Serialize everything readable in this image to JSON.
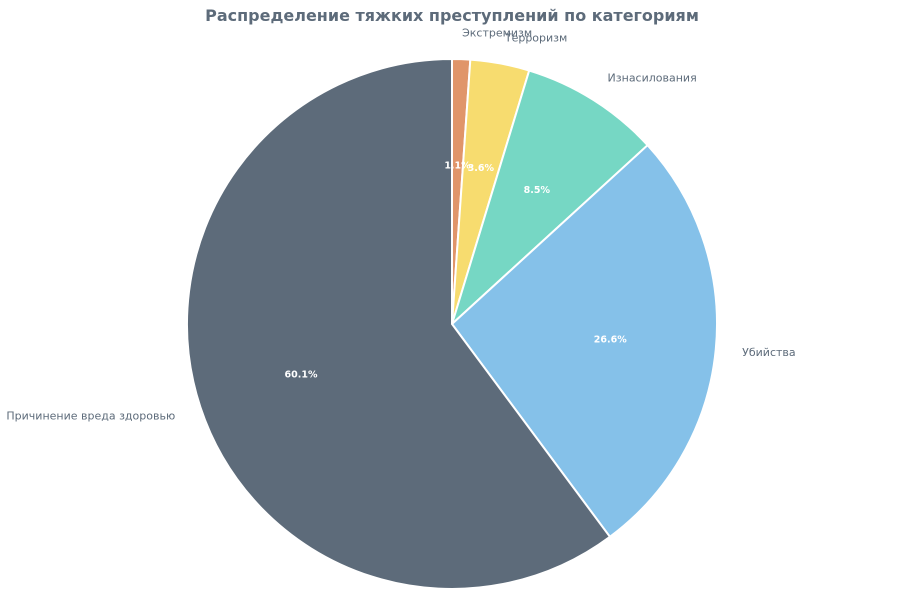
{
  "chart_data": {
    "type": "pie",
    "title": "Распределение тяжких преступлений по категориям",
    "start_angle_deg": 90,
    "direction": "clockwise",
    "slices": [
      {
        "label": "Экстремизм",
        "value": 1.1,
        "display": "1.1%",
        "color": "#e0956a"
      },
      {
        "label": "Терроризм",
        "value": 3.6,
        "display": "3.6%",
        "color": "#f7dc6f"
      },
      {
        "label": "Изнасилования",
        "value": 8.5,
        "display": "8.5%",
        "color": "#76d7c4"
      },
      {
        "label": "Убийства",
        "value": 26.6,
        "display": "26.6%",
        "color": "#85c1e9"
      },
      {
        "label": "Причинение вреда здоровью",
        "value": 60.1,
        "display": "60.1%",
        "color": "#5d6b7a"
      }
    ],
    "legend": "none"
  }
}
